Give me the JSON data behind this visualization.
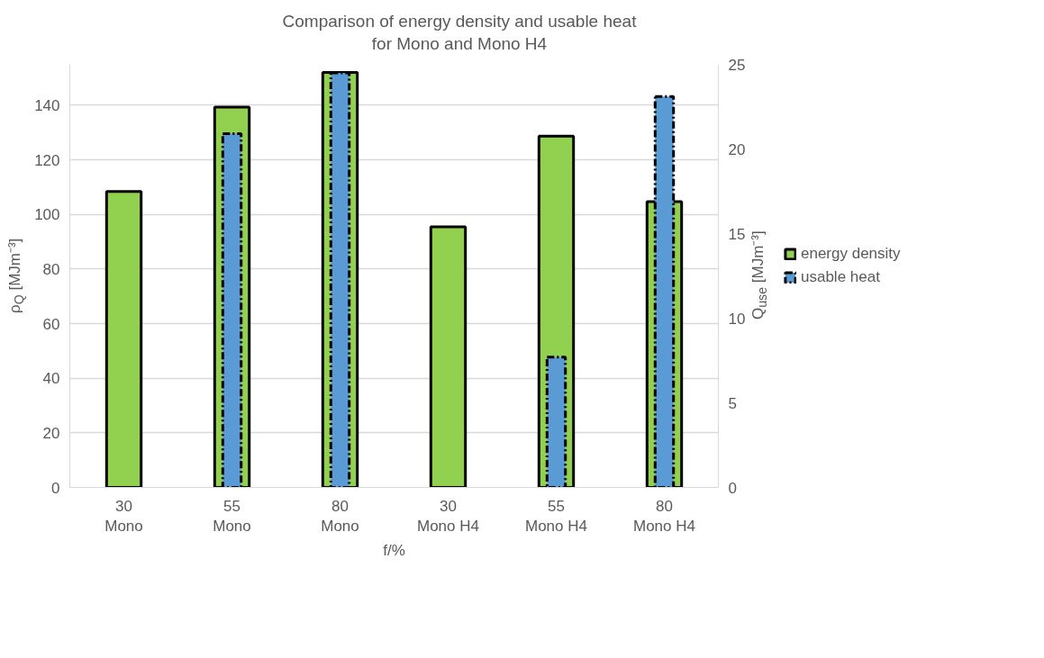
{
  "chart_data": {
    "type": "bar",
    "title": "Comparison of energy density and usable heat\nfor Mono and Mono H4",
    "xlabel": "f/%",
    "ylabel": "ρ$_{Q}$ [MJm⁻³]",
    "y2label": "Q$_{use}$ [MJm⁻³]",
    "categories": [
      "30\nMono",
      "55\nMono",
      "80\nMono",
      "30\nMono H4",
      "55\nMono H4",
      "80\nMono H4"
    ],
    "series": [
      {
        "name": "energy density",
        "color": "#92d050",
        "values": [
          108.4,
          139.3,
          152.0,
          95.5,
          128.7,
          104.7
        ]
      },
      {
        "name": "usable heat",
        "color": "#5b9bd5",
        "values": [
          null,
          20.9,
          24.5,
          null,
          7.7,
          23.1
        ],
        "axis": "y2",
        "line_style": "dashed"
      }
    ],
    "ylim": [
      0,
      155
    ],
    "yticks": [
      0,
      20,
      40,
      60,
      80,
      100,
      120,
      140
    ],
    "y2lim": [
      0,
      25
    ],
    "y2ticks": [
      0,
      5,
      10,
      15,
      20,
      25
    ],
    "grid": "y",
    "legend": "right"
  }
}
